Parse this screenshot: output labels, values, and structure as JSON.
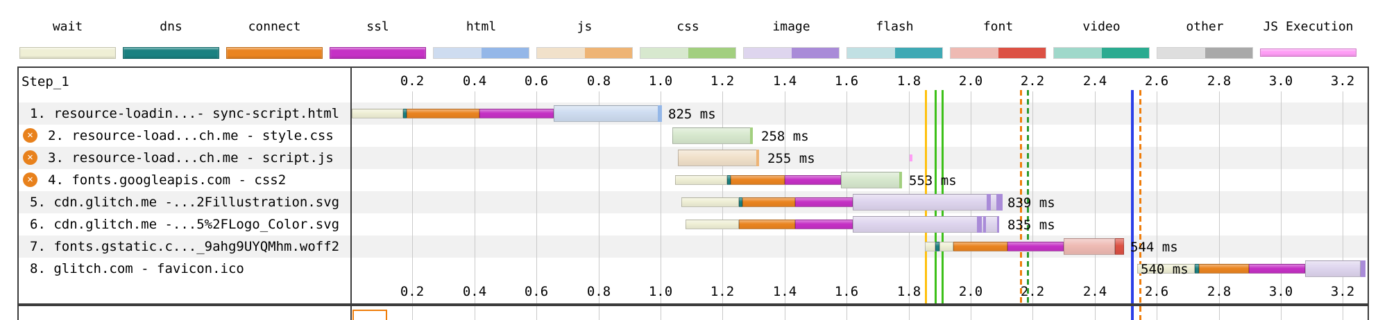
{
  "legend": {
    "items": [
      {
        "label": "wait",
        "phase": "wait",
        "two_tone": false,
        "thin": false
      },
      {
        "label": "dns",
        "phase": "dns",
        "two_tone": false,
        "thin": false
      },
      {
        "label": "connect",
        "phase": "connect",
        "two_tone": false,
        "thin": false
      },
      {
        "label": "ssl",
        "phase": "ssl",
        "two_tone": false,
        "thin": false
      },
      {
        "label": "html",
        "phase": "html",
        "two_tone": true,
        "thin": false
      },
      {
        "label": "js",
        "phase": "js",
        "two_tone": true,
        "thin": false
      },
      {
        "label": "css",
        "phase": "css",
        "two_tone": true,
        "thin": false
      },
      {
        "label": "image",
        "phase": "image",
        "two_tone": true,
        "thin": false
      },
      {
        "label": "flash",
        "phase": "flash",
        "two_tone": true,
        "thin": false
      },
      {
        "label": "font",
        "phase": "font",
        "two_tone": true,
        "thin": false
      },
      {
        "label": "video",
        "phase": "video",
        "two_tone": true,
        "thin": false
      },
      {
        "label": "other",
        "phase": "other",
        "two_tone": true,
        "thin": false
      },
      {
        "label": "JS Execution",
        "phase": "jsexec",
        "two_tone": false,
        "thin": true
      }
    ]
  },
  "phases": {
    "wait": {
      "light": "#efefd5",
      "dark": "#d9d9a8"
    },
    "dns": {
      "light": "#1a8181",
      "dark": "#0f6868"
    },
    "connect": {
      "light": "#ea8420",
      "dark": "#cf6e0e"
    },
    "ssl": {
      "light": "#c531c5",
      "dark": "#a81ea8"
    },
    "html": {
      "light": "#cedcf0",
      "dark": "#94b7e8"
    },
    "js": {
      "light": "#f1e1ca",
      "dark": "#eeb475"
    },
    "css": {
      "light": "#d7e8ce",
      "dark": "#a2cf7f"
    },
    "image": {
      "light": "#ded5ee",
      "dark": "#a98bd8"
    },
    "flash": {
      "light": "#c1e0e3",
      "dark": "#3fa9b4"
    },
    "font": {
      "light": "#eebab3",
      "dark": "#dc5144"
    },
    "video": {
      "light": "#9fd8ca",
      "dark": "#2bab90"
    },
    "other": {
      "light": "#dedede",
      "dark": "#a9a9a9"
    },
    "jsexec": {
      "light": "#fe9df5",
      "dark": "#fe9df5"
    }
  },
  "misc": {
    "band_color": "#f1f1f1",
    "border_color": "#3b3b3b",
    "grid_color": "#c9c9c9",
    "blocked_icon_color": "#e8811c",
    "blocked_icon_glyph": "✕",
    "next_section_box_border": "#ef7d0a"
  },
  "chart_data": {
    "type": "waterfall",
    "title": "Step_1",
    "time_unit": "seconds",
    "x_ticks": [
      "0.2",
      "0.4",
      "0.6",
      "0.8",
      "1.0",
      "1.2",
      "1.4",
      "1.6",
      "1.8",
      "2.0",
      "2.2",
      "2.4",
      "2.6",
      "2.8",
      "3.0",
      "3.2"
    ],
    "x_max": 3.3,
    "rows": [
      {
        "num": 1,
        "label": "1. resource-loadin...- sync-script.html",
        "blocked": false,
        "duration_label": "825 ms",
        "duration_label_time": 1.025,
        "segments": [
          {
            "phase": "wait",
            "variant": "light",
            "kind": "request",
            "start": 0.005,
            "end": 0.17
          },
          {
            "phase": "dns",
            "variant": "light",
            "kind": "request",
            "start": 0.17,
            "end": 0.182
          },
          {
            "phase": "connect",
            "variant": "light",
            "kind": "request",
            "start": 0.182,
            "end": 0.415
          },
          {
            "phase": "ssl",
            "variant": "light",
            "kind": "request",
            "start": 0.415,
            "end": 0.655
          },
          {
            "phase": "html",
            "variant": "light",
            "kind": "content",
            "start": 0.655,
            "end": 1.005
          },
          {
            "phase": "html",
            "variant": "dark",
            "kind": "chunk",
            "start": 0.99,
            "end": 1.005
          }
        ]
      },
      {
        "num": 2,
        "label": "2. resource-load...ch.me - style.css",
        "blocked": true,
        "duration_label": "258 ms",
        "duration_label_time": 1.325,
        "segments": [
          {
            "phase": "css",
            "variant": "light",
            "kind": "content",
            "start": 1.037,
            "end": 1.298
          },
          {
            "phase": "css",
            "variant": "dark",
            "kind": "chunk",
            "start": 1.289,
            "end": 1.298
          }
        ]
      },
      {
        "num": 3,
        "label": "3. resource-load...ch.me - script.js",
        "blocked": true,
        "duration_label": "255 ms",
        "duration_label_time": 1.345,
        "segments": [
          {
            "phase": "js",
            "variant": "light",
            "kind": "content",
            "start": 1.057,
            "end": 1.318
          },
          {
            "phase": "js",
            "variant": "dark",
            "kind": "chunk",
            "start": 1.309,
            "end": 1.318
          }
        ],
        "js_exec_ticks": [
          1.807
        ]
      },
      {
        "num": 4,
        "label": "4. fonts.googleapis.com - css2",
        "blocked": true,
        "duration_label": "553 ms",
        "duration_label_time": 1.802,
        "segments": [
          {
            "phase": "wait",
            "variant": "light",
            "kind": "request",
            "start": 1.047,
            "end": 1.215
          },
          {
            "phase": "dns",
            "variant": "light",
            "kind": "request",
            "start": 1.215,
            "end": 1.227
          },
          {
            "phase": "connect",
            "variant": "light",
            "kind": "request",
            "start": 1.227,
            "end": 1.4
          },
          {
            "phase": "ssl",
            "variant": "light",
            "kind": "request",
            "start": 1.4,
            "end": 1.582
          },
          {
            "phase": "css",
            "variant": "light",
            "kind": "content",
            "start": 1.582,
            "end": 1.779
          },
          {
            "phase": "css",
            "variant": "dark",
            "kind": "chunk",
            "start": 1.77,
            "end": 1.779
          }
        ]
      },
      {
        "num": 5,
        "label": "5. cdn.glitch.me -...2Fillustration.svg",
        "blocked": false,
        "duration_label": "839 ms",
        "duration_label_time": 2.119,
        "segments": [
          {
            "phase": "wait",
            "variant": "light",
            "kind": "request",
            "start": 1.068,
            "end": 1.252
          },
          {
            "phase": "dns",
            "variant": "light",
            "kind": "request",
            "start": 1.252,
            "end": 1.263
          },
          {
            "phase": "connect",
            "variant": "light",
            "kind": "request",
            "start": 1.263,
            "end": 1.435
          },
          {
            "phase": "ssl",
            "variant": "light",
            "kind": "request",
            "start": 1.435,
            "end": 1.62
          },
          {
            "phase": "image",
            "variant": "light",
            "kind": "content",
            "start": 1.62,
            "end": 2.103
          },
          {
            "phase": "image",
            "variant": "dark",
            "kind": "chunk",
            "start": 2.052,
            "end": 2.065
          },
          {
            "phase": "image",
            "variant": "dark",
            "kind": "chunk",
            "start": 2.082,
            "end": 2.103
          }
        ]
      },
      {
        "num": 6,
        "label": "6. cdn.glitch.me -...5%2FLogo_Color.svg",
        "blocked": false,
        "duration_label": "835 ms",
        "duration_label_time": 2.119,
        "segments": [
          {
            "phase": "wait",
            "variant": "light",
            "kind": "request",
            "start": 1.08,
            "end": 1.252
          },
          {
            "phase": "connect",
            "variant": "light",
            "kind": "request",
            "start": 1.252,
            "end": 1.435
          },
          {
            "phase": "ssl",
            "variant": "light",
            "kind": "request",
            "start": 1.435,
            "end": 1.62
          },
          {
            "phase": "image",
            "variant": "light",
            "kind": "content",
            "start": 1.62,
            "end": 2.092
          },
          {
            "phase": "image",
            "variant": "dark",
            "kind": "chunk",
            "start": 2.02,
            "end": 2.036
          },
          {
            "phase": "image",
            "variant": "dark",
            "kind": "chunk",
            "start": 2.04,
            "end": 2.05
          },
          {
            "phase": "image",
            "variant": "dark",
            "kind": "chunk",
            "start": 2.084,
            "end": 2.092
          }
        ]
      },
      {
        "num": 7,
        "label": "7. fonts.gstatic.c..._9ahg9UYQMhm.woff2",
        "blocked": false,
        "duration_label": "544 ms",
        "duration_label_time": 2.515,
        "segments": [
          {
            "phase": "wait",
            "variant": "light",
            "kind": "request",
            "start": 1.853,
            "end": 1.887
          },
          {
            "phase": "dns",
            "variant": "light",
            "kind": "request",
            "start": 1.887,
            "end": 1.9
          },
          {
            "phase": "wait",
            "variant": "light",
            "kind": "request",
            "start": 1.9,
            "end": 1.945
          },
          {
            "phase": "connect",
            "variant": "light",
            "kind": "request",
            "start": 1.945,
            "end": 2.118
          },
          {
            "phase": "ssl",
            "variant": "light",
            "kind": "request",
            "start": 2.118,
            "end": 2.3
          },
          {
            "phase": "font",
            "variant": "light",
            "kind": "content",
            "start": 2.3,
            "end": 2.465
          },
          {
            "phase": "font",
            "variant": "dark",
            "kind": "content",
            "start": 2.465,
            "end": 2.495
          }
        ]
      },
      {
        "num": 8,
        "label": "8. glitch.com - favicon.ico",
        "blocked": false,
        "duration_label": "540 ms",
        "duration_label_time": 2.548,
        "segments": [
          {
            "phase": "wait",
            "variant": "light",
            "kind": "request",
            "start": 2.538,
            "end": 2.722
          },
          {
            "phase": "dns",
            "variant": "light",
            "kind": "request",
            "start": 2.722,
            "end": 2.735
          },
          {
            "phase": "connect",
            "variant": "light",
            "kind": "request",
            "start": 2.735,
            "end": 2.898
          },
          {
            "phase": "ssl",
            "variant": "light",
            "kind": "request",
            "start": 2.898,
            "end": 3.078
          },
          {
            "phase": "image",
            "variant": "light",
            "kind": "content",
            "start": 3.078,
            "end": 3.258
          },
          {
            "phase": "image",
            "variant": "dark",
            "kind": "chunk",
            "start": 3.258,
            "end": 3.272
          }
        ]
      }
    ],
    "event_lines": [
      {
        "name": "marker-yellow-solid",
        "time": 1.855,
        "color": "#ffc10d",
        "style": "solid",
        "width": 3,
        "extends_below": false
      },
      {
        "name": "marker-green-solid-1",
        "time": 1.886,
        "color": "#3dc019",
        "style": "solid",
        "width": 3,
        "extends_below": false
      },
      {
        "name": "marker-green-solid-2",
        "time": 1.908,
        "color": "#3dc019",
        "style": "solid",
        "width": 3,
        "extends_below": false
      },
      {
        "name": "marker-orange-dashed-1",
        "time": 2.161,
        "color": "#ef7d0a",
        "style": "dashed",
        "width": 3,
        "extends_below": false
      },
      {
        "name": "marker-green-dashed",
        "time": 2.183,
        "color": "#2c9a2c",
        "style": "dashed",
        "width": 3,
        "extends_below": false
      },
      {
        "name": "marker-blue-solid",
        "time": 2.521,
        "color": "#2b3fe8",
        "style": "solid",
        "width": 4,
        "extends_below": true
      },
      {
        "name": "marker-orange-dashed-2",
        "time": 2.546,
        "color": "#ef7d0a",
        "style": "dashed",
        "width": 3,
        "extends_below": true
      }
    ]
  }
}
